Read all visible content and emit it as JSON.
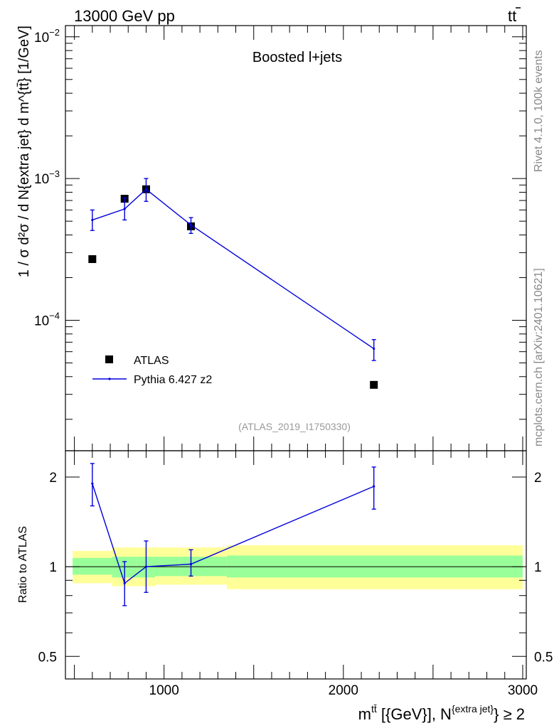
{
  "header": {
    "energy_label": "13000 GeV pp",
    "process_label_base": "t",
    "process_label_bar": "t"
  },
  "side_text": {
    "rivet_version": "Rivet 4.1.0,  100k events",
    "source": "mcplots.cern.ch [arXiv:2401.10621]"
  },
  "chart_data": [
    {
      "type": "scatter",
      "title": "Boosted l+jets",
      "analysis_id": "(ATLAS_2019_I1750330)",
      "ylabel": "1 / σ d²σ / d N{extra jet} d m^{tt̄} [1/GeV]",
      "xlim": [
        450,
        3020
      ],
      "ylim": [
        1.2e-05,
        0.012
      ],
      "yscale": "log",
      "yticks": [
        {
          "value": 0.0001,
          "base": "10",
          "exp": "−4"
        },
        {
          "value": 0.001,
          "base": "10",
          "exp": "−3"
        },
        {
          "value": 0.01,
          "base": "10",
          "exp": "−2"
        }
      ],
      "legend_position": "bottom-left",
      "series": [
        {
          "name": "ATLAS",
          "style": "markers",
          "color": "#000000",
          "x": [
            600,
            780,
            900,
            1150,
            2170
          ],
          "y": [
            0.00027,
            0.00072,
            0.00084,
            0.00046,
            3.5e-05
          ]
        },
        {
          "name": "Pythia 6.427 z2",
          "style": "line-errorbars",
          "color": "#0000dd",
          "x": [
            600,
            780,
            900,
            1150,
            2170
          ],
          "y": [
            0.00051,
            0.00061,
            0.00084,
            0.00047,
            6.3e-05
          ],
          "yerr_low": [
            8e-05,
            0.0001,
            0.00015,
            6e-05,
            1.1e-05
          ],
          "yerr_high": [
            9e-05,
            0.00012,
            0.00016,
            6e-05,
            1e-05
          ]
        }
      ]
    },
    {
      "type": "line",
      "ylabel": "Ratio to ATLAS",
      "xlabel_main": "m",
      "xlabel_sup": "tt̄",
      "xlabel_mid": " [{GeV}], N",
      "xlabel_sup2": "{extra jet}",
      "xlabel_end": "} ≥ 2",
      "xlim": [
        450,
        3020
      ],
      "ylim": [
        0.42,
        2.45
      ],
      "yscale": "log",
      "xticks": [
        {
          "value": 1000,
          "label": "1000"
        },
        {
          "value": 2000,
          "label": "2000"
        },
        {
          "value": 3000,
          "label": "3000"
        }
      ],
      "yticks": [
        {
          "value": 0.5,
          "label": "0.5"
        },
        {
          "value": 1,
          "label": "1"
        },
        {
          "value": 2,
          "label": "2"
        }
      ],
      "bands": {
        "bin_edges": [
          490,
          710,
          850,
          950,
          1350,
          3000
        ],
        "inner_low": [
          0.94,
          0.92,
          0.92,
          0.93,
          0.92
        ],
        "inner_high": [
          1.07,
          1.08,
          1.08,
          1.08,
          1.09
        ],
        "outer_low": [
          0.88,
          0.86,
          0.86,
          0.87,
          0.84
        ],
        "outer_high": [
          1.13,
          1.16,
          1.16,
          1.16,
          1.18
        ],
        "inner_color": "#99ff99",
        "outer_color": "#ffff99"
      },
      "series": [
        {
          "name": "Pythia 6.427 z2",
          "color": "#0000dd",
          "x": [
            600,
            780,
            900,
            1150,
            2170
          ],
          "y": [
            1.9,
            0.88,
            1.0,
            1.02,
            1.86
          ],
          "yerr_low": [
            0.3,
            0.14,
            0.18,
            0.09,
            0.3
          ],
          "yerr_high": [
            0.32,
            0.16,
            0.22,
            0.12,
            0.3
          ]
        }
      ]
    }
  ]
}
